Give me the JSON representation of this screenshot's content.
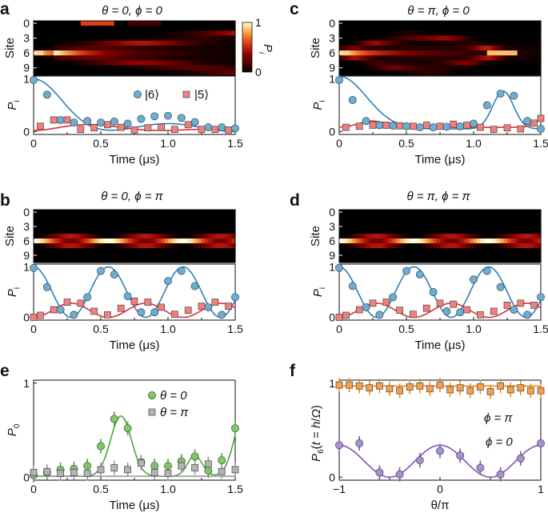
{
  "colors": {
    "blue": "#6aaed6",
    "blue_line": "#2f7fb5",
    "red": "#f08080",
    "red_line": "#d9313a",
    "green": "#7bcb63",
    "green_line": "#4aa83a",
    "gray": "#b3b3b3",
    "gray_line": "#9a9a9a",
    "orange": "#f5a04a",
    "orange_line": "#f08a1a",
    "purple": "#a98fd4",
    "purple_line": "#7e54b8"
  },
  "chart_data": [
    {
      "panel": "a",
      "type": "heatmap+scatter",
      "title_theta": "θ = 0",
      "title_phi": "ϕ = 0",
      "heatmap": {
        "ylabel": "Site",
        "yticks": [
          "0",
          "3",
          "6",
          "9"
        ],
        "sites": 11,
        "start_site": 6,
        "colorbar": {
          "label": "P_i",
          "min_label": "0",
          "max_label": "1"
        }
      },
      "ylabel": "P_i",
      "xlabel": "Time (μs)",
      "xlim": [
        0,
        1.5
      ],
      "ylim": [
        0,
        1
      ],
      "xticks": [
        "0",
        "0.5",
        "1.0",
        "1.5"
      ],
      "yticks": [
        "0",
        "1"
      ],
      "legend": [
        "|6⟩",
        "|5⟩"
      ],
      "series": [
        {
          "name": "|6⟩",
          "color": "blue",
          "marker": "circle",
          "x": [
            0,
            0.1,
            0.2,
            0.3,
            0.4,
            0.5,
            0.6,
            0.7,
            0.8,
            0.9,
            1.0,
            1.1,
            1.2,
            1.3,
            1.4,
            1.5
          ],
          "y": [
            0.98,
            0.7,
            0.22,
            0.17,
            0.2,
            0.17,
            0.19,
            0.15,
            0.24,
            0.29,
            0.3,
            0.26,
            0.18,
            0.08,
            0.08,
            0.06
          ]
        },
        {
          "name": "|5⟩",
          "color": "red",
          "marker": "square",
          "x": [
            0.05,
            0.15,
            0.25,
            0.35,
            0.45,
            0.55,
            0.65,
            0.75,
            0.85,
            0.95,
            1.05,
            1.15,
            1.25,
            1.35,
            1.45
          ],
          "y": [
            0.1,
            0.22,
            0.22,
            0.04,
            0.07,
            0.13,
            0.08,
            0.03,
            0.07,
            0.08,
            0.04,
            0.13,
            0.04,
            0.04,
            0.03
          ]
        }
      ],
      "fits": [
        {
          "color": "blue_line",
          "model": "exp(-a t^2)*(1-b) + b*cos^2(w t)",
          "params": {
            "a": 12,
            "b": 0.3,
            "w": 3.1,
            "c": 1.0
          }
        },
        {
          "color": "red_line",
          "model": "c*sin^2(w t)*exp(-a t)",
          "params": {
            "a": 1.5,
            "w": 3.3,
            "c": 0.22
          }
        }
      ]
    },
    {
      "panel": "b",
      "type": "heatmap+scatter",
      "title_theta": "θ = 0",
      "title_phi": "ϕ = π",
      "heatmap": {
        "ylabel": "Site",
        "yticks": [
          "0",
          "3",
          "6",
          "9"
        ],
        "sites": 11,
        "start_site": 6
      },
      "ylabel": "P_i",
      "xlabel": "Time (μs)",
      "xlim": [
        0,
        1.5
      ],
      "ylim": [
        0,
        1
      ],
      "xticks": [
        "0",
        "0.5",
        "1.0",
        "1.5"
      ],
      "yticks": [
        "0",
        "1"
      ],
      "series": [
        {
          "name": "|6⟩",
          "color": "blue",
          "marker": "circle",
          "x": [
            0,
            0.1,
            0.2,
            0.3,
            0.4,
            0.5,
            0.6,
            0.7,
            0.8,
            0.9,
            1.0,
            1.1,
            1.2,
            1.3,
            1.4,
            1.5
          ],
          "y": [
            0.98,
            0.6,
            0.15,
            0.05,
            0.4,
            0.92,
            0.85,
            0.42,
            0.1,
            0.1,
            0.72,
            0.92,
            0.62,
            0.2,
            0.05,
            0.4
          ]
        },
        {
          "name": "|5⟩",
          "color": "red",
          "marker": "square",
          "x": [
            0,
            0.05,
            0.15,
            0.25,
            0.35,
            0.45,
            0.55,
            0.65,
            0.75,
            0.85,
            0.95,
            1.05,
            1.15,
            1.25,
            1.35,
            1.45
          ],
          "y": [
            0.0,
            0.04,
            0.15,
            0.3,
            0.28,
            0.12,
            0.05,
            0.18,
            0.32,
            0.3,
            0.2,
            0.06,
            0.14,
            0.22,
            0.3,
            0.22
          ]
        }
      ],
      "fits": [
        {
          "color": "blue_line",
          "model": "cos^2(w t)",
          "params": {
            "w": 5.65
          }
        },
        {
          "color": "red_line",
          "model": "c*sin^2(w t)",
          "params": {
            "w": 5.65,
            "c": 0.28
          }
        }
      ]
    },
    {
      "panel": "c",
      "type": "heatmap+scatter",
      "title_theta": "θ = π",
      "title_phi": "ϕ = 0",
      "heatmap": {
        "ylabel": "Site",
        "yticks": [
          "0",
          "3",
          "6",
          "9"
        ],
        "sites": 11,
        "start_site": 6
      },
      "ylabel": "P_i",
      "xlabel": "Time (μs)",
      "xlim": [
        0,
        1.5
      ],
      "ylim": [
        0,
        1
      ],
      "xticks": [
        "0",
        "0.5",
        "1.0",
        "1.5"
      ],
      "yticks": [
        "0",
        "1"
      ],
      "series": [
        {
          "name": "|6⟩",
          "color": "blue",
          "marker": "circle",
          "x": [
            0,
            0.1,
            0.2,
            0.3,
            0.4,
            0.5,
            0.6,
            0.7,
            0.8,
            0.9,
            1.0,
            1.1,
            1.2,
            1.3,
            1.4,
            1.5
          ],
          "y": [
            0.98,
            0.6,
            0.2,
            0.12,
            0.11,
            0.1,
            0.08,
            0.08,
            0.09,
            0.1,
            0.15,
            0.5,
            0.72,
            0.68,
            0.2,
            0.05
          ]
        },
        {
          "name": "|5⟩",
          "color": "red",
          "marker": "square",
          "x": [
            0.05,
            0.15,
            0.25,
            0.35,
            0.45,
            0.55,
            0.65,
            0.75,
            0.85,
            0.95,
            1.05,
            1.15,
            1.25,
            1.35,
            1.45,
            1.5
          ],
          "y": [
            0.08,
            0.1,
            0.12,
            0.12,
            0.11,
            0.1,
            0.12,
            0.1,
            0.14,
            0.12,
            0.08,
            0.04,
            0.07,
            0.05,
            0.16,
            0.25
          ]
        }
      ],
      "fits": [
        {
          "color": "blue_line",
          "model": "exp(-a t^2) + c*exp(-(t-1.22)^2/s)",
          "params": {
            "a": 12,
            "c": 0.72,
            "s": 0.012
          }
        },
        {
          "color": "red_line",
          "model": "flat low",
          "params": {
            "c": 0.08
          }
        }
      ]
    },
    {
      "panel": "d",
      "type": "heatmap+scatter",
      "title_theta": "θ = π",
      "title_phi": "ϕ = π",
      "heatmap": {
        "ylabel": "Site",
        "yticks": [
          "0",
          "3",
          "6",
          "9"
        ],
        "sites": 11,
        "start_site": 6
      },
      "ylabel": "P_i",
      "xlabel": "Time (μs)",
      "xlim": [
        0,
        1.5
      ],
      "ylim": [
        0,
        1
      ],
      "xticks": [
        "0",
        "0.5",
        "1.0",
        "1.5"
      ],
      "yticks": [
        "0",
        "1"
      ],
      "series": [
        {
          "name": "|6⟩",
          "color": "blue",
          "marker": "circle",
          "x": [
            0,
            0.1,
            0.2,
            0.3,
            0.4,
            0.5,
            0.6,
            0.7,
            0.8,
            0.9,
            1.0,
            1.1,
            1.2,
            1.3,
            1.4,
            1.5
          ],
          "y": [
            0.98,
            0.62,
            0.2,
            0.05,
            0.4,
            0.92,
            0.85,
            0.5,
            0.12,
            0.1,
            0.75,
            0.92,
            0.6,
            0.15,
            0.05,
            0.4
          ]
        },
        {
          "name": "|5⟩",
          "color": "red",
          "marker": "square",
          "x": [
            0,
            0.05,
            0.15,
            0.25,
            0.35,
            0.45,
            0.55,
            0.65,
            0.75,
            0.85,
            0.95,
            1.05,
            1.15,
            1.25,
            1.35,
            1.45
          ],
          "y": [
            0.0,
            0.04,
            0.15,
            0.28,
            0.3,
            0.14,
            0.06,
            0.18,
            0.28,
            0.26,
            0.15,
            0.05,
            0.12,
            0.24,
            0.28,
            0.24
          ]
        }
      ],
      "fits": [
        {
          "color": "blue_line",
          "model": "cos^2(w t)",
          "params": {
            "w": 5.65
          }
        },
        {
          "color": "red_line",
          "model": "c*sin^2(w t)",
          "params": {
            "w": 5.65,
            "c": 0.28
          }
        }
      ]
    },
    {
      "panel": "e",
      "type": "scatter",
      "ylabel": "P_0",
      "xlabel": "Time (μs)",
      "xlim": [
        0,
        1.5
      ],
      "ylim": [
        0,
        1
      ],
      "xticks": [
        "0",
        "0.5",
        "1.0",
        "1.5"
      ],
      "yticks": [
        "0",
        "1"
      ],
      "legend": [
        "θ = 0",
        "θ = π"
      ],
      "series": [
        {
          "name": "θ = 0",
          "color": "green",
          "marker": "circle",
          "x": [
            0,
            0.1,
            0.2,
            0.3,
            0.4,
            0.5,
            0.6,
            0.7,
            0.8,
            0.9,
            1.0,
            1.1,
            1.2,
            1.3,
            1.4,
            1.5
          ],
          "y": [
            0.02,
            0.05,
            0.08,
            0.09,
            0.12,
            0.33,
            0.62,
            0.52,
            0.16,
            0.12,
            0.12,
            0.17,
            0.22,
            0.07,
            0.18,
            0.52
          ]
        },
        {
          "name": "θ = π",
          "color": "gray",
          "marker": "square",
          "x": [
            0,
            0.1,
            0.2,
            0.3,
            0.4,
            0.5,
            0.6,
            0.7,
            0.8,
            0.9,
            1.0,
            1.1,
            1.2,
            1.3,
            1.4,
            1.5
          ],
          "y": [
            0.05,
            0.06,
            0.04,
            0.05,
            0.04,
            0.08,
            0.1,
            0.08,
            0.15,
            0.05,
            0.04,
            0.12,
            0.1,
            0.14,
            0.06,
            0.08
          ]
        }
      ],
      "fits": [
        {
          "color": "green_line",
          "model": "gaussian peaks",
          "params": {
            "peaks": [
              [
                0.65,
                0.65,
                0.012
              ],
              [
                1.2,
                0.22,
                0.006
              ],
              [
                1.55,
                0.75,
                0.012
              ]
            ]
          }
        },
        {
          "color": "gray_line",
          "model": "flat",
          "params": {
            "c": 0.01
          }
        }
      ]
    },
    {
      "panel": "f",
      "type": "scatter",
      "ylabel": "P_6(t = h/Ω)",
      "xlabel": "θ/π",
      "xlim": [
        -1,
        1
      ],
      "ylim": [
        0,
        1
      ],
      "xticks": [
        "−1",
        "0",
        "1"
      ],
      "yticks": [
        "0",
        "1"
      ],
      "annotations": [
        "ϕ = π",
        "ϕ = 0"
      ],
      "series": [
        {
          "name": "ϕ = π",
          "color": "orange",
          "marker": "square",
          "x": [
            -1,
            -0.9,
            -0.8,
            -0.7,
            -0.6,
            -0.5,
            -0.4,
            -0.3,
            -0.2,
            -0.1,
            0,
            0.1,
            0.2,
            0.3,
            0.4,
            0.5,
            0.6,
            0.7,
            0.8,
            0.9,
            1.0
          ],
          "y": [
            0.98,
            0.98,
            0.97,
            0.95,
            0.97,
            0.94,
            0.92,
            0.96,
            0.97,
            0.94,
            0.98,
            0.93,
            0.95,
            0.92,
            0.96,
            0.91,
            0.97,
            0.93,
            0.95,
            0.92,
            0.92
          ]
        },
        {
          "name": "ϕ = 0",
          "color": "purple",
          "marker": "circle",
          "x": [
            -1,
            -0.8,
            -0.6,
            -0.4,
            -0.2,
            0,
            0.2,
            0.4,
            0.6,
            0.8,
            1.0
          ],
          "y": [
            0.34,
            0.36,
            0.05,
            0.03,
            0.18,
            0.28,
            0.23,
            0.1,
            0.03,
            0.2,
            0.36
          ]
        }
      ],
      "fits": [
        {
          "color": "orange_line",
          "model": "flat",
          "params": {
            "c": 0.97
          }
        },
        {
          "color": "purple_line",
          "model": "a+b*cos(2πx)",
          "params": {
            "a": 0.17,
            "b": 0.17
          }
        }
      ]
    }
  ]
}
